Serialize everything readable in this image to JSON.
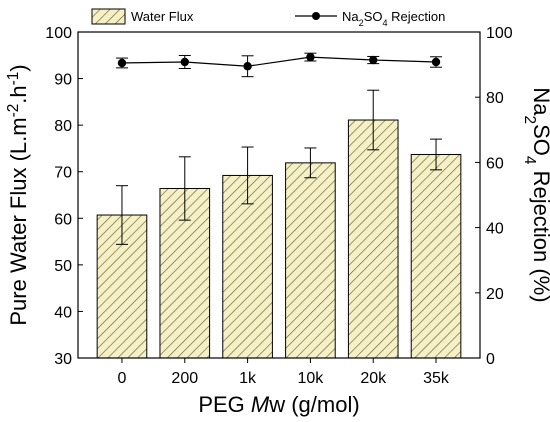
{
  "chart_data": {
    "type": "bar",
    "categories": [
      "0",
      "200",
      "1k",
      "10k",
      "20k",
      "35k"
    ],
    "x_title_parts": [
      "PEG ",
      "M",
      "w (g/mol)"
    ],
    "y_left": {
      "title_parts": [
        "Pure Water Flux (L.m",
        "-2",
        ".h",
        "-1",
        ")"
      ],
      "ylim": [
        30,
        100
      ],
      "ticks": [
        30,
        40,
        50,
        60,
        70,
        80,
        90,
        100
      ]
    },
    "y_right": {
      "title_parts": [
        "Na",
        "2",
        "SO",
        "4",
        " Rejection (%)"
      ],
      "ylim": [
        0,
        100
      ],
      "ticks": [
        0,
        20,
        40,
        60,
        80,
        100
      ]
    },
    "series": [
      {
        "name": "Water Flux",
        "kind": "bar",
        "axis": "left",
        "values": [
          60.7,
          66.4,
          69.2,
          71.9,
          81.1,
          73.7
        ],
        "errors": [
          6.3,
          6.8,
          6.1,
          3.2,
          6.4,
          3.3
        ],
        "fill": "#f5f0c8",
        "hatch": "#6b6428"
      },
      {
        "name": "Na2SO4 Rejection",
        "legend_parts": [
          "Na",
          "2",
          "SO",
          "4",
          " Rejection"
        ],
        "kind": "line",
        "axis": "right",
        "values": [
          90.5,
          90.8,
          89.5,
          92.3,
          91.4,
          90.8
        ],
        "errors": [
          1.5,
          2.0,
          3.2,
          1.2,
          1.1,
          1.6
        ],
        "color": "#000000"
      }
    ],
    "legend": "top",
    "grid": false
  }
}
